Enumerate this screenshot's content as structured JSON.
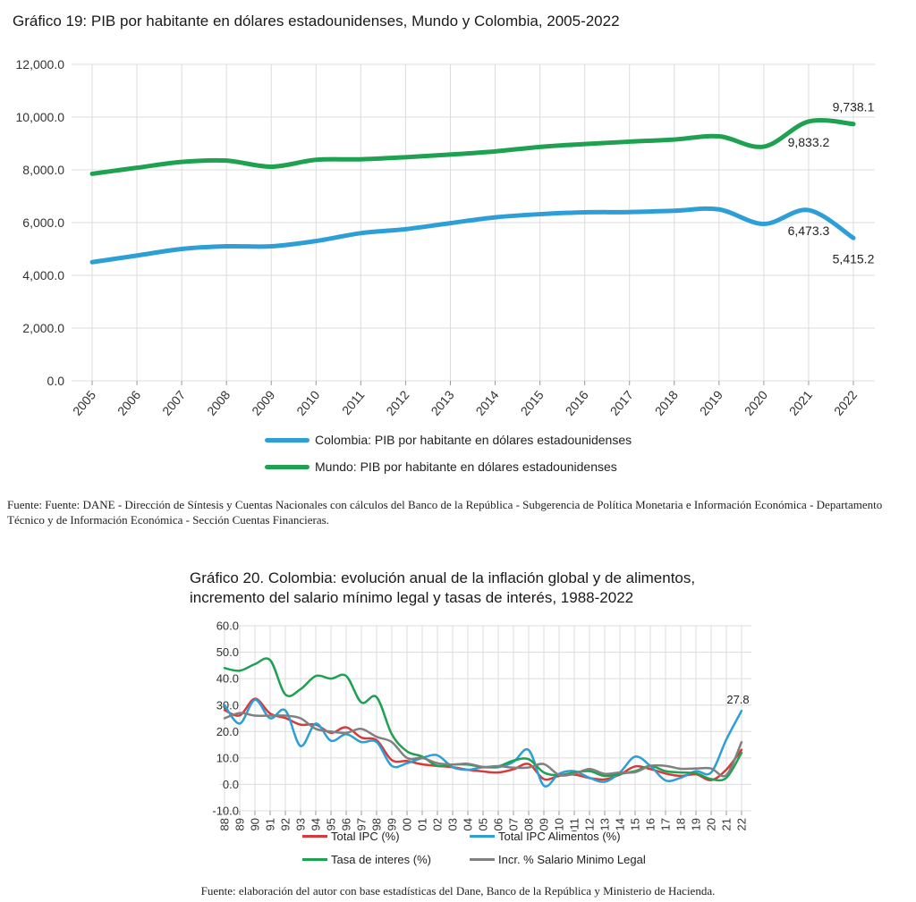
{
  "chart19": {
    "title": "Gráfico 19: PIB por habitante en dólares estadounidenses, Mundo y Colombia, 2005-2022",
    "source": "Fuente: Fuente: DANE - Dirección de Síntesis y Cuentas Nacionales con cálculos del Banco de la República - Subgerencia de Política Monetaria e Información Económica - Departamento Técnico y de Información Económica - Sección Cuentas Financieras."
  },
  "chart20": {
    "title_line1": "Gráfico 20. Colombia: evolución  anual de la inflación global y de alimentos,",
    "title_line2": "incremento del salario mínimo legal y tasas de interés, 1988-2022",
    "source": "Fuente: elaboración del autor con base estadísticas del Dane, Banco de la República y Ministerio de Hacienda."
  },
  "chart_data": [
    {
      "type": "line",
      "title": "Gráfico 19: PIB por habitante en dólares estadounidenses, Mundo y Colombia, 2005-2022",
      "x": [
        "2005",
        "2006",
        "2007",
        "2008",
        "2009",
        "2010",
        "2011",
        "2012",
        "2013",
        "2014",
        "2015",
        "2016",
        "2017",
        "2018",
        "2019",
        "2020",
        "2021",
        "2022"
      ],
      "ylim": [
        0,
        12000
      ],
      "yticks": [
        "0.0",
        "2,000.0",
        "4,000.0",
        "6,000.0",
        "8,000.0",
        "10,000.0",
        "12,000.0"
      ],
      "grid": true,
      "legend_position": "bottom",
      "series": [
        {
          "name": "Colombia: PIB por habitante en dólares estadounidenses",
          "color": "#2e9fd6",
          "values": [
            4500,
            4750,
            5000,
            5100,
            5100,
            5300,
            5600,
            5750,
            5980,
            6200,
            6320,
            6390,
            6400,
            6450,
            6500,
            5950,
            6473.3,
            5415.2
          ]
        },
        {
          "name": "Mundo: PIB por habitante en dólares estadounidenses",
          "color": "#1ea150",
          "values": [
            7850,
            8080,
            8300,
            8350,
            8120,
            8380,
            8400,
            8480,
            8580,
            8700,
            8870,
            8980,
            9070,
            9150,
            9270,
            8880,
            9833.2,
            9738.1
          ]
        }
      ],
      "annotations": [
        {
          "text": "9,738.1",
          "x": "2022",
          "y": 9738.1,
          "place": "above"
        },
        {
          "text": "9,833.2",
          "x": "2021",
          "y": 9833.2,
          "place": "below"
        },
        {
          "text": "6,473.3",
          "x": "2021",
          "y": 6473.3,
          "place": "below"
        },
        {
          "text": "5,415.2",
          "x": "2022",
          "y": 5415.2,
          "place": "below"
        }
      ]
    },
    {
      "type": "line",
      "title": "Gráfico 20. Colombia: evolución  anual de la inflación global y de alimentos, incremento del salario mínimo legal y tasas de interés, 1988-2022",
      "x": [
        "1988",
        "1989",
        "1990",
        "1991",
        "1992",
        "1993",
        "1994",
        "1995",
        "1996",
        "1997",
        "1998",
        "1999",
        "2000",
        "2001",
        "2002",
        "2003",
        "2004",
        "2005",
        "2006",
        "2007",
        "2008",
        "2009",
        "2010",
        "2011",
        "2012",
        "2013",
        "2014",
        "2015",
        "2016",
        "2017",
        "2018",
        "2019",
        "2020",
        "2021",
        "2022"
      ],
      "ylim": [
        -10,
        60
      ],
      "yticks": [
        "-10.0",
        "0.0",
        "10.0",
        "20.0",
        "30.0",
        "40.0",
        "50.0",
        "60.0"
      ],
      "grid": true,
      "legend_position": "bottom",
      "series": [
        {
          "name": "Total IPC  (%)",
          "color": "#d63a3a",
          "values": [
            28.1,
            26.1,
            32.4,
            26.8,
            25.1,
            22.6,
            22.6,
            19.5,
            21.6,
            17.7,
            16.7,
            9.2,
            8.8,
            7.6,
            7.0,
            6.5,
            5.5,
            4.9,
            4.5,
            5.7,
            7.7,
            2.0,
            3.2,
            3.7,
            2.4,
            1.9,
            3.7,
            6.8,
            5.8,
            4.1,
            3.2,
            3.8,
            1.6,
            5.6,
            13.1
          ]
        },
        {
          "name": "Total IPC Alimentos (%)",
          "color": "#2e9fd6",
          "values": [
            30.0,
            23.0,
            32.0,
            25.0,
            28.0,
            14.5,
            23.0,
            16.5,
            19.0,
            16.0,
            16.0,
            7.0,
            8.0,
            10.0,
            11.0,
            6.5,
            5.5,
            6.5,
            6.5,
            8.5,
            13.0,
            -0.5,
            4.0,
            5.0,
            2.5,
            1.0,
            4.5,
            10.5,
            7.0,
            1.5,
            2.5,
            5.0,
            4.5,
            17.0,
            27.8
          ]
        },
        {
          "name": "Tasa de interes (%)",
          "color": "#1ea150",
          "values": [
            44.0,
            43.0,
            45.5,
            47.0,
            34.0,
            36.0,
            41.0,
            40.0,
            41.0,
            31.0,
            33.0,
            19.0,
            12.5,
            10.5,
            7.0,
            7.5,
            7.5,
            6.5,
            6.8,
            9.0,
            9.5,
            4.5,
            3.5,
            4.5,
            5.0,
            3.2,
            4.0,
            5.0,
            7.0,
            5.0,
            4.5,
            4.2,
            2.0,
            2.5,
            12.0
          ]
        },
        {
          "name": "Incr. % Salario Minimo Legal",
          "color": "#808080",
          "values": [
            25.0,
            27.0,
            26.0,
            26.0,
            26.0,
            25.0,
            21.0,
            20.0,
            19.5,
            21.0,
            18.0,
            16.0,
            10.0,
            10.0,
            8.0,
            7.5,
            7.8,
            6.6,
            6.9,
            6.3,
            6.4,
            7.7,
            3.6,
            4.0,
            5.8,
            4.0,
            4.5,
            4.6,
            7.0,
            7.0,
            5.9,
            6.0,
            6.0,
            3.5,
            16.0
          ]
        }
      ],
      "annotations": [
        {
          "text": "27.8",
          "x": "2022",
          "y": 27.8,
          "place": "above"
        }
      ]
    }
  ]
}
